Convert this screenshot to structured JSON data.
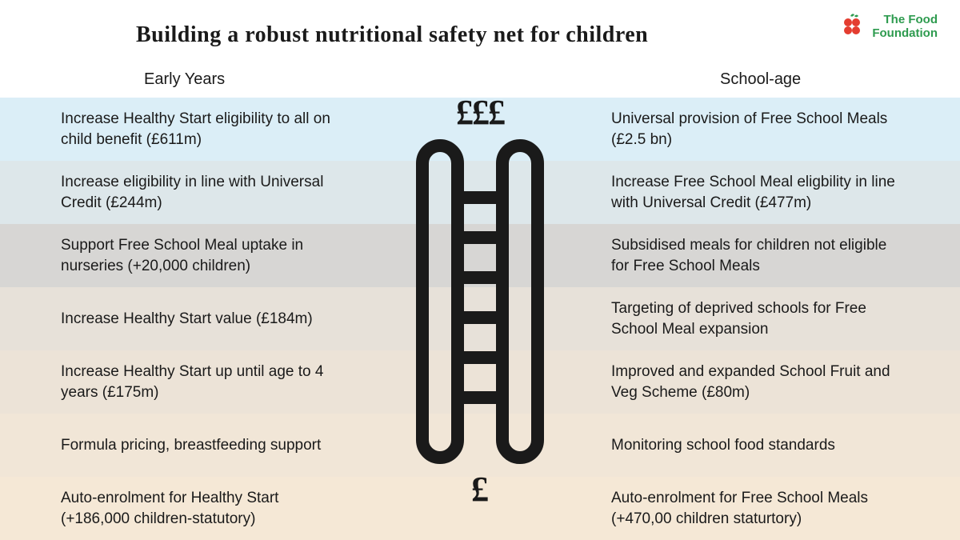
{
  "title": "Building a robust nutritional safety net for children",
  "logo": {
    "line1": "The Food",
    "line2": "Foundation",
    "text_color": "#2e9b4f"
  },
  "columns": {
    "left_header": "Early Years",
    "right_header": "School-age"
  },
  "center": {
    "top_symbol": "£££",
    "bottom_symbol": "£"
  },
  "row_colors": [
    "#dbeef7",
    "#dde7ea",
    "#d7d6d4",
    "#e7e1d9",
    "#ece3d7",
    "#f1e6d7",
    "#f5e8d6"
  ],
  "ladder": {
    "stroke": "#1a1a1a",
    "stroke_width": 16
  },
  "rows": [
    {
      "left": "Increase Healthy Start eligibility to all on child benefit (£611m)",
      "right": "Universal provision of Free School Meals (£2.5 bn)"
    },
    {
      "left": "Increase eligibility in line with Universal Credit (£244m)",
      "right": "Increase Free School Meal eligbility in line with Universal Credit (£477m)"
    },
    {
      "left": "Support Free School Meal uptake in nurseries (+20,000 children)",
      "right": "Subsidised meals for children not eligible for Free School Meals"
    },
    {
      "left": "Increase Healthy Start value (£184m)",
      "right": "Targeting of deprived schools for Free School Meal expansion"
    },
    {
      "left": "Increase Healthy Start up until age to 4 years (£175m)",
      "right": "Improved and expanded School Fruit and Veg Scheme (£80m)"
    },
    {
      "left": "Formula pricing, breastfeeding support",
      "right": "Monitoring school food standards"
    },
    {
      "left": "Auto-enrolment for Healthy Start (+186,000 children-statutory)",
      "right": "Auto-enrolment for Free School Meals (+470,00 children staturtory)"
    }
  ]
}
